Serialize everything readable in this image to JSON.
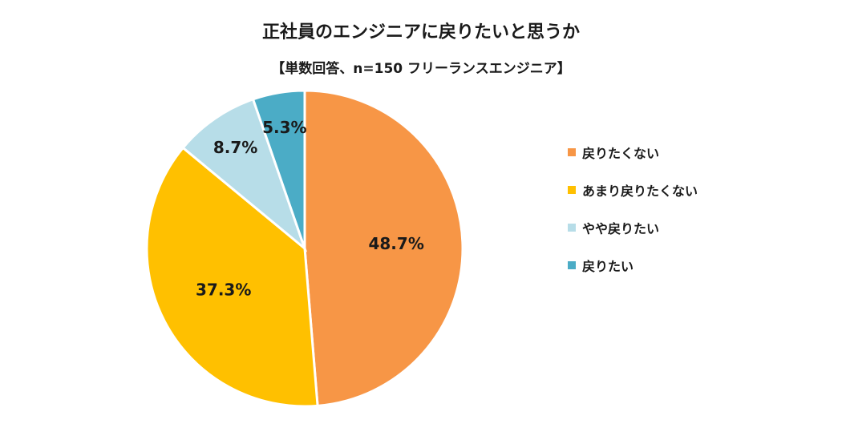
{
  "chart_data": {
    "type": "pie",
    "title": "正社員のエンジニアに戻りたいと思うか",
    "subtitle": "【単数回答、n=150 フリーランスエンジニア】",
    "categories": [
      "戻りたくない",
      "あまり戻りたくない",
      "やや戻りたい",
      "戻りたい"
    ],
    "values": [
      48.7,
      37.3,
      8.7,
      5.3
    ],
    "labels": [
      "48.7%",
      "37.3%",
      "8.7%",
      "5.3%"
    ],
    "colors": [
      "#F79646",
      "#FFC000",
      "#B7DDE8",
      "#4BACC6"
    ],
    "legend_position": "right"
  }
}
